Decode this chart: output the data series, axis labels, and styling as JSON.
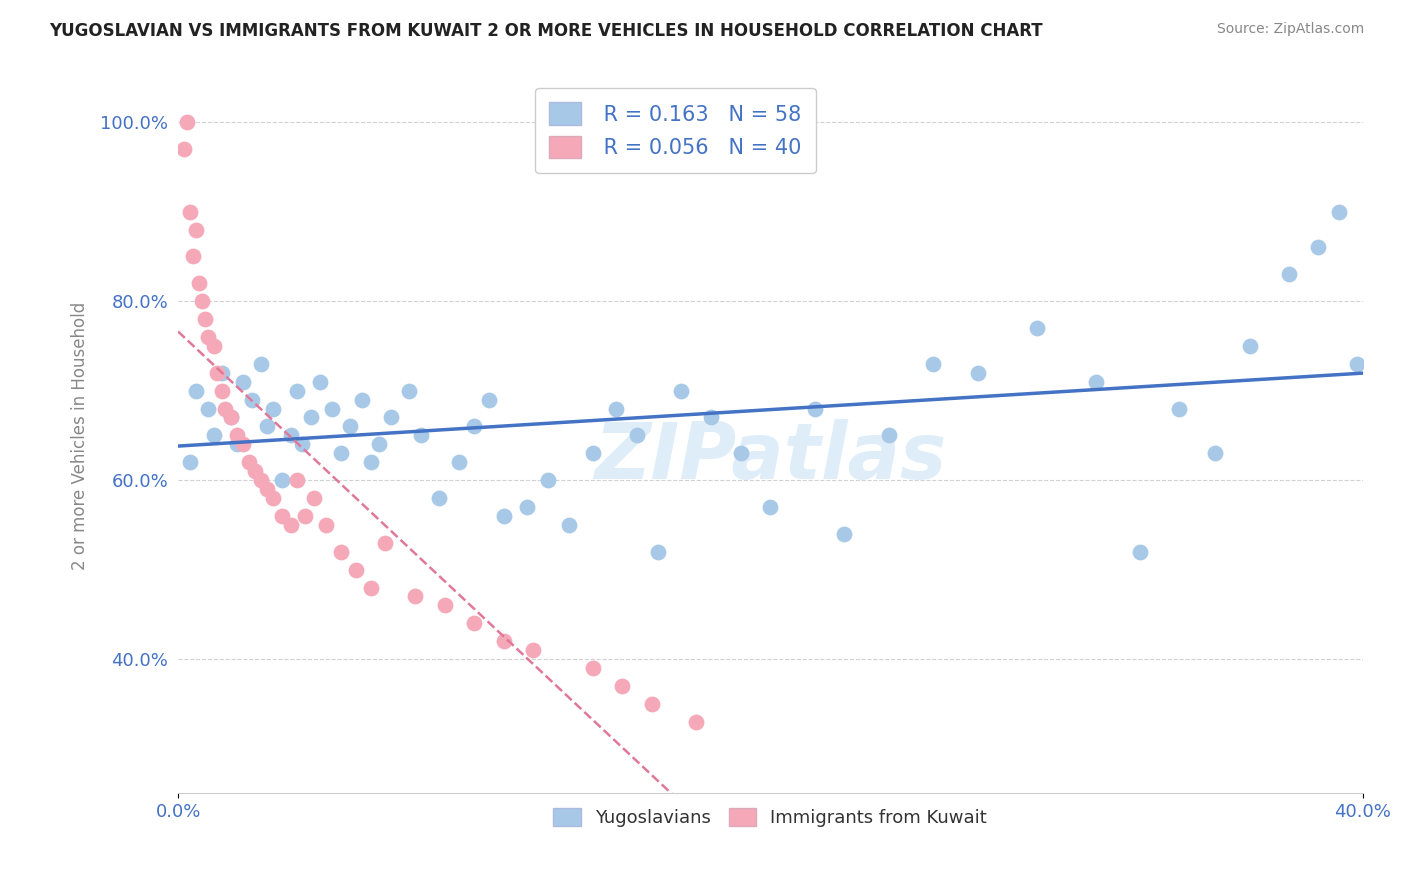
{
  "title": "YUGOSLAVIAN VS IMMIGRANTS FROM KUWAIT 2 OR MORE VEHICLES IN HOUSEHOLD CORRELATION CHART",
  "source": "Source: ZipAtlas.com",
  "xlabel_blue": "Yugoslavians",
  "xlabel_pink": "Immigrants from Kuwait",
  "ylabel": "2 or more Vehicles in Household",
  "R_blue": 0.163,
  "N_blue": 58,
  "R_pink": 0.056,
  "N_pink": 40,
  "xmin": 0.0,
  "xmax": 0.4,
  "ymin": 0.25,
  "ymax": 1.05,
  "y_ticks": [
    0.4,
    0.6,
    0.8,
    1.0
  ],
  "y_tick_labels": [
    "40.0%",
    "60.0%",
    "80.0%",
    "100.0%"
  ],
  "watermark": "ZIPatlas",
  "blue_color": "#a8c8e8",
  "pink_color": "#f4a8b8",
  "trend_blue": "#4472c4",
  "trend_pink": "#e07898",
  "legend_text_color": "#4472c4",
  "blue_scatter_x": [
    0.004,
    0.006,
    0.01,
    0.012,
    0.015,
    0.018,
    0.02,
    0.022,
    0.025,
    0.028,
    0.03,
    0.032,
    0.035,
    0.038,
    0.04,
    0.042,
    0.045,
    0.048,
    0.052,
    0.055,
    0.058,
    0.062,
    0.065,
    0.068,
    0.072,
    0.078,
    0.082,
    0.088,
    0.095,
    0.1,
    0.105,
    0.11,
    0.118,
    0.125,
    0.132,
    0.14,
    0.148,
    0.155,
    0.162,
    0.17,
    0.18,
    0.19,
    0.2,
    0.215,
    0.225,
    0.24,
    0.255,
    0.27,
    0.29,
    0.31,
    0.325,
    0.338,
    0.35,
    0.362,
    0.375,
    0.385,
    0.392,
    0.398
  ],
  "blue_scatter_y": [
    0.62,
    0.7,
    0.68,
    0.65,
    0.72,
    0.67,
    0.64,
    0.71,
    0.69,
    0.73,
    0.66,
    0.68,
    0.6,
    0.65,
    0.7,
    0.64,
    0.67,
    0.71,
    0.68,
    0.63,
    0.66,
    0.69,
    0.62,
    0.64,
    0.67,
    0.7,
    0.65,
    0.58,
    0.62,
    0.66,
    0.69,
    0.56,
    0.57,
    0.6,
    0.55,
    0.63,
    0.68,
    0.65,
    0.52,
    0.7,
    0.67,
    0.63,
    0.57,
    0.68,
    0.54,
    0.65,
    0.73,
    0.72,
    0.77,
    0.71,
    0.52,
    0.68,
    0.63,
    0.75,
    0.83,
    0.86,
    0.9,
    0.73
  ],
  "pink_scatter_x": [
    0.002,
    0.003,
    0.004,
    0.005,
    0.006,
    0.007,
    0.008,
    0.009,
    0.01,
    0.012,
    0.013,
    0.015,
    0.016,
    0.018,
    0.02,
    0.022,
    0.024,
    0.026,
    0.028,
    0.03,
    0.032,
    0.035,
    0.038,
    0.04,
    0.043,
    0.046,
    0.05,
    0.055,
    0.06,
    0.065,
    0.07,
    0.08,
    0.09,
    0.1,
    0.11,
    0.12,
    0.14,
    0.15,
    0.16,
    0.175
  ],
  "pink_scatter_y": [
    0.97,
    1.0,
    0.9,
    0.85,
    0.88,
    0.82,
    0.8,
    0.78,
    0.76,
    0.75,
    0.72,
    0.7,
    0.68,
    0.67,
    0.65,
    0.64,
    0.62,
    0.61,
    0.6,
    0.59,
    0.58,
    0.56,
    0.55,
    0.6,
    0.56,
    0.58,
    0.55,
    0.52,
    0.5,
    0.48,
    0.53,
    0.47,
    0.46,
    0.44,
    0.42,
    0.41,
    0.39,
    0.37,
    0.35,
    0.33
  ]
}
